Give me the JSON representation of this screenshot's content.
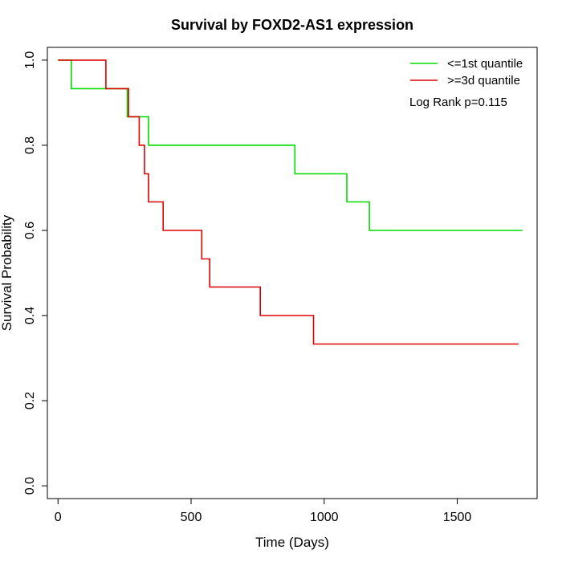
{
  "chart_data": {
    "type": "line",
    "step": true,
    "title": "Survival by FOXD2-AS1 expression",
    "xlabel": "Time (Days)",
    "ylabel": "Survival Probability",
    "xlim": [
      -40,
      1800
    ],
    "ylim": [
      -0.03,
      1.03
    ],
    "x_ticks": [
      0,
      500,
      1000,
      1500
    ],
    "x_tick_labels": [
      "0",
      "500",
      "1000",
      "1500"
    ],
    "y_ticks": [
      0.0,
      0.2,
      0.4,
      0.6,
      0.8,
      1.0
    ],
    "y_tick_labels": [
      "0.0",
      "0.2",
      "0.4",
      "0.6",
      "0.8",
      "1.0"
    ],
    "grid": false,
    "legend_position": "top-right",
    "annotation": "Log Rank p=0.115",
    "series": [
      {
        "name": "<=1st quantile",
        "color": "#00dd00",
        "x": [
          0,
          50,
          50,
          260,
          260,
          340,
          340,
          890,
          890,
          1085,
          1085,
          1170,
          1170,
          1745
        ],
        "y": [
          1.0,
          1.0,
          0.933,
          0.933,
          0.867,
          0.867,
          0.8,
          0.8,
          0.733,
          0.733,
          0.667,
          0.667,
          0.6,
          0.6
        ]
      },
      {
        "name": ">=3d quantile",
        "color": "#dd0000",
        "x": [
          0,
          180,
          180,
          265,
          265,
          305,
          305,
          325,
          325,
          340,
          340,
          395,
          395,
          540,
          540,
          570,
          570,
          760,
          760,
          960,
          960,
          1730
        ],
        "y": [
          1.0,
          1.0,
          0.933,
          0.933,
          0.867,
          0.867,
          0.8,
          0.8,
          0.733,
          0.733,
          0.667,
          0.667,
          0.6,
          0.6,
          0.533,
          0.533,
          0.467,
          0.467,
          0.4,
          0.4,
          0.333,
          0.333
        ]
      }
    ]
  }
}
